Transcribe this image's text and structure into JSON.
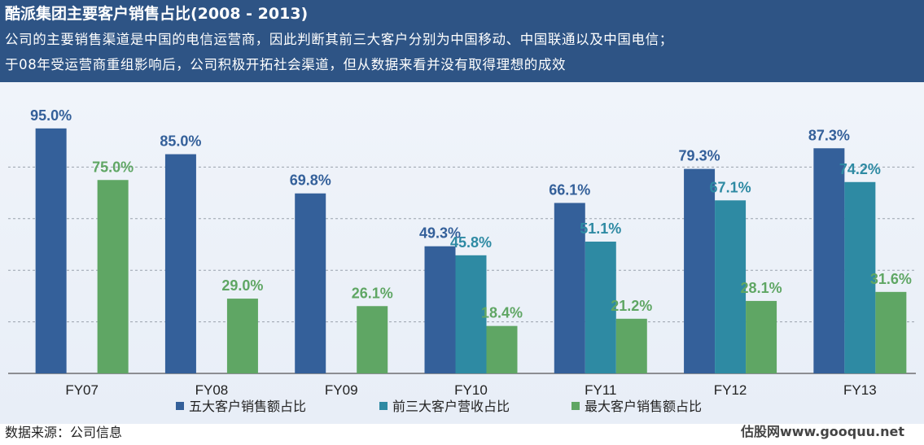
{
  "header": {
    "title": "酷派集团主要客户销售占比(2008 - 2013)",
    "subtitle_line1": "公司的主要销售渠道是中国的电信运营商，因此判断其前三大客户分别为中国移动、中国联通以及中国电信；",
    "subtitle_line2": "于08年受运营商重组影响后，公司积极开拓社会渠道，但从数据来看并没有取得理想的成效"
  },
  "chart_data": {
    "type": "bar",
    "categories": [
      "FY07",
      "FY08",
      "FY09",
      "FY10",
      "FY11",
      "FY12",
      "FY13"
    ],
    "series": [
      {
        "name": "五大客户销售额占比",
        "color": "#34609a",
        "label_color": "#34609a",
        "values": [
          95.0,
          85.0,
          69.8,
          49.3,
          66.1,
          79.3,
          87.3
        ],
        "labels": [
          "95.0%",
          "85.0%",
          "69.8%",
          "49.3%",
          "66.1%",
          "79.3%",
          "87.3%"
        ]
      },
      {
        "name": "前三大客户营收占比",
        "color": "#2e8aa3",
        "label_color": "#2e8aa3",
        "values": [
          null,
          null,
          null,
          45.8,
          51.1,
          67.1,
          74.2
        ],
        "labels": [
          "",
          "",
          "",
          "45.8%",
          "51.1%",
          "67.1%",
          "74.2%"
        ]
      },
      {
        "name": "最大客户销售额占比",
        "color": "#5fa664",
        "label_color": "#5fa664",
        "values": [
          75.0,
          29.0,
          26.1,
          18.4,
          21.2,
          28.1,
          31.6
        ],
        "labels": [
          "75.0%",
          "29.0%",
          "26.1%",
          "18.4%",
          "21.2%",
          "28.1%",
          "31.6%"
        ]
      }
    ],
    "ylim": [
      0,
      100
    ],
    "grid": true,
    "legend": "bottom"
  },
  "footer": {
    "source": "数据来源：公司信息",
    "brand": "估股网www.gooquu.net"
  }
}
